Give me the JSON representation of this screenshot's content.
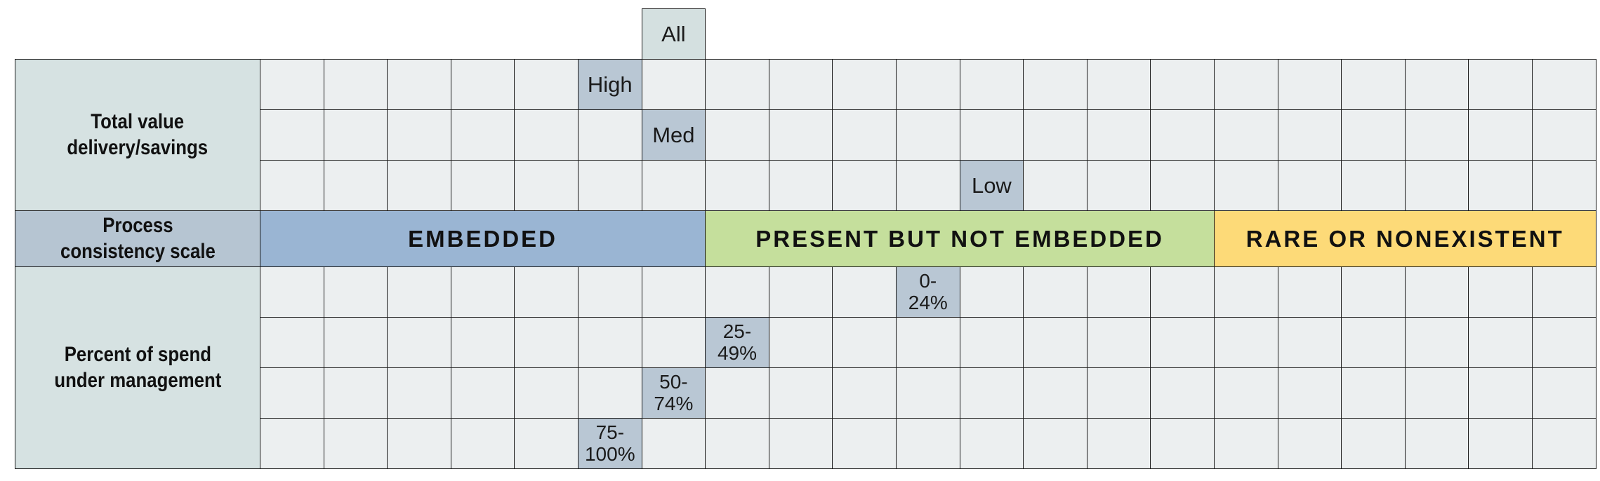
{
  "row_labels": {
    "value": "Total value\ndelivery/savings",
    "scale": "Process\nconsistency scale",
    "spend": "Percent of spend\nunder management"
  },
  "top_marker": "All",
  "value_levels": {
    "high": "High",
    "med": "Med",
    "low": "Low"
  },
  "bands": [
    {
      "label": "EMBEDDED",
      "color": "#9ab5d3"
    },
    {
      "label": "PRESENT BUT NOT EMBEDDED",
      "color": "#c5df9c"
    },
    {
      "label": "RARE OR NONEXISTENT",
      "color": "#fdda78"
    }
  ],
  "spend_levels": {
    "p0": "0-\n24%",
    "p25": "25-\n49%",
    "p50": "50-\n74%",
    "p75": "75-\n100%"
  },
  "colors": {
    "grid_cell": "#eceff0",
    "marker": "#b9c7d4",
    "header": "#d6e2e2",
    "scale_header": "#b6c5d2"
  }
}
